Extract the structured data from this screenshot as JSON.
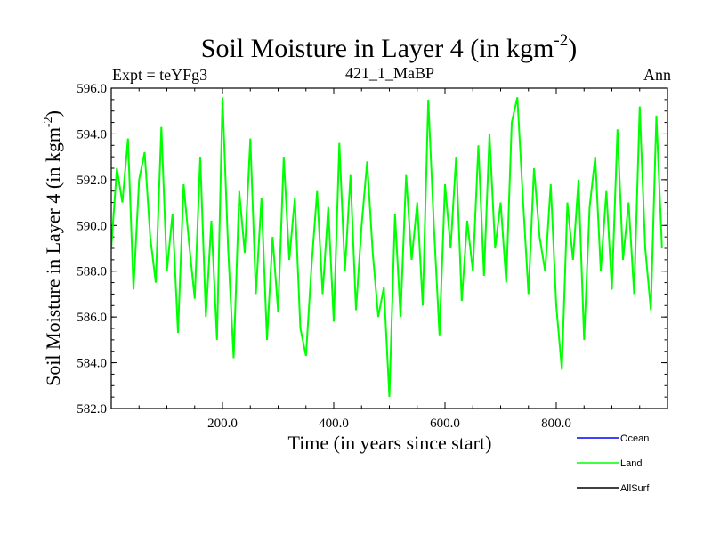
{
  "chart_data": {
    "type": "line",
    "title_main": "Soil Moisture in Layer 4 (in kgm",
    "title_sup": "-2",
    "title_close": ")",
    "subtitle_left": "Expt = teYFg3",
    "subtitle_center": "421_1_MaBP",
    "subtitle_right": "Ann",
    "xlabel": "Time (in years since start)",
    "ylabel_main": "Soil Moisture in Layer 4 (in kgm",
    "ylabel_sup": "-2",
    "ylabel_close": ")",
    "xlim": [
      0,
      1000
    ],
    "ylim": [
      582.0,
      596.0
    ],
    "xticks": [
      200,
      400,
      600,
      800
    ],
    "xtick_labels": [
      "200.0",
      "400.0",
      "600.0",
      "800.0"
    ],
    "yticks": [
      582,
      584,
      586,
      588,
      590,
      592,
      594,
      596
    ],
    "ytick_labels": [
      "582.0",
      "584.0",
      "586.0",
      "588.0",
      "590.0",
      "592.0",
      "594.0",
      "596.0"
    ],
    "legend": [
      {
        "name": "Ocean",
        "color": "#0000ff"
      },
      {
        "name": "Land",
        "color": "#00ff00"
      },
      {
        "name": "AllSurf",
        "color": "#000000"
      }
    ],
    "series": [
      {
        "name": "Land",
        "color": "#00ff00",
        "x_start": 0,
        "x_step": 10,
        "values": [
          589.0,
          592.5,
          591.0,
          593.8,
          587.2,
          592.0,
          593.2,
          589.5,
          587.5,
          594.3,
          588.0,
          590.5,
          585.3,
          591.8,
          589.2,
          586.8,
          593.0,
          586.0,
          590.2,
          585.0,
          595.6,
          589.0,
          584.2,
          591.5,
          588.8,
          593.8,
          587.0,
          591.2,
          585.0,
          589.5,
          586.2,
          593.0,
          588.5,
          591.2,
          585.5,
          584.3,
          588.2,
          591.5,
          587.0,
          590.8,
          585.8,
          593.6,
          588.0,
          592.2,
          586.3,
          590.0,
          592.8,
          588.8,
          586.0,
          587.3,
          582.5,
          590.5,
          586.0,
          592.2,
          588.5,
          591.0,
          586.5,
          595.5,
          590.0,
          585.2,
          591.8,
          589.0,
          593.0,
          586.7,
          590.2,
          588.0,
          593.5,
          587.8,
          594.0,
          589.0,
          591.0,
          587.5,
          594.5,
          595.6,
          591.2,
          587.0,
          592.5,
          589.5,
          588.0,
          591.8,
          586.5,
          583.7,
          591.0,
          588.5,
          592.0,
          585.0,
          590.8,
          593.0,
          588.0,
          591.5,
          587.2,
          594.2,
          588.5,
          591.0,
          587.0,
          595.2,
          589.0,
          586.3,
          594.8,
          589.0
        ]
      }
    ]
  }
}
